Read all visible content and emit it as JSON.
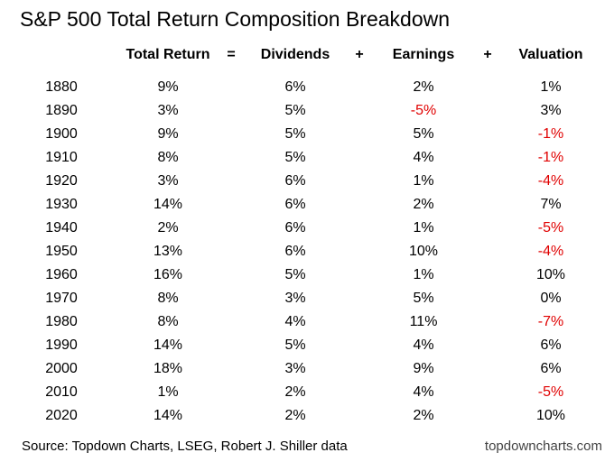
{
  "title": "S&P 500 Total Return Composition Breakdown",
  "table": {
    "header": [
      "Total Return",
      "=",
      "Dividends",
      "+",
      "Earnings",
      "+",
      "Valuation"
    ],
    "negative_color": "#e00000",
    "rows": [
      [
        "1880",
        "9%",
        "6%",
        "2%",
        "1%"
      ],
      [
        "1890",
        "3%",
        "5%",
        "-5%",
        "3%"
      ],
      [
        "1900",
        "9%",
        "5%",
        "5%",
        "-1%"
      ],
      [
        "1910",
        "8%",
        "5%",
        "4%",
        "-1%"
      ],
      [
        "1920",
        "3%",
        "6%",
        "1%",
        "-4%"
      ],
      [
        "1930",
        "14%",
        "6%",
        "2%",
        "7%"
      ],
      [
        "1940",
        "2%",
        "6%",
        "1%",
        "-5%"
      ],
      [
        "1950",
        "13%",
        "6%",
        "10%",
        "-4%"
      ],
      [
        "1960",
        "16%",
        "5%",
        "1%",
        "10%"
      ],
      [
        "1970",
        "8%",
        "3%",
        "5%",
        "0%"
      ],
      [
        "1980",
        "8%",
        "4%",
        "11%",
        "-7%"
      ],
      [
        "1990",
        "14%",
        "5%",
        "4%",
        "6%"
      ],
      [
        "2000",
        "18%",
        "3%",
        "9%",
        "6%"
      ],
      [
        "2010",
        "1%",
        "2%",
        "4%",
        "-5%"
      ],
      [
        "2020",
        "14%",
        "2%",
        "2%",
        "10%"
      ]
    ]
  },
  "footer": {
    "source": "Source: Topdown Charts, LSEG, Robert J. Shiller data",
    "site": "topdowncharts.com"
  }
}
